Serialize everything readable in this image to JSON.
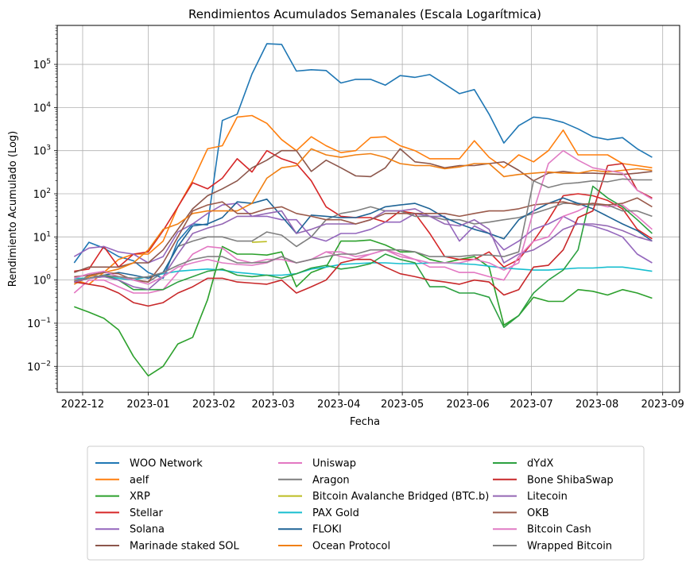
{
  "chart_data": {
    "type": "line",
    "title": "Rendimientos Acumulados Semanales (Escala Logarítmica)",
    "xlabel": "Fecha",
    "ylabel": "Rendimiento Acumulado (Log)",
    "yscale": "log",
    "ylim": [
      0.0025,
      800000
    ],
    "xlim": [
      "2022-11-19",
      "2023-09-09"
    ],
    "grid": true,
    "legend_position": "bottom",
    "x_tick_labels": [
      "2022-12",
      "2023-01",
      "2023-02",
      "2023-03",
      "2023-04",
      "2023-05",
      "2023-06",
      "2023-07",
      "2023-08",
      "2023-09"
    ],
    "x_tick_dates": [
      "2022-12-01",
      "2023-01-01",
      "2023-02-01",
      "2023-03-01",
      "2023-04-01",
      "2023-05-01",
      "2023-06-01",
      "2023-07-01",
      "2023-08-01",
      "2023-09-01"
    ],
    "y_tick_labels": [
      {
        "value": 0.01,
        "label": "10",
        "exp": "−2"
      },
      {
        "value": 0.1,
        "label": "10",
        "exp": "−1"
      },
      {
        "value": 1,
        "label": "10",
        "exp": "0"
      },
      {
        "value": 10,
        "label": "10",
        "exp": "1"
      },
      {
        "value": 100,
        "label": "10",
        "exp": "2"
      },
      {
        "value": 1000,
        "label": "10",
        "exp": "3"
      },
      {
        "value": 10000,
        "label": "10",
        "exp": "4"
      },
      {
        "value": 100000,
        "label": "10",
        "exp": "5"
      }
    ],
    "x": [
      "2022-11-27",
      "2022-12-04",
      "2022-12-11",
      "2022-12-18",
      "2022-12-25",
      "2023-01-01",
      "2023-01-08",
      "2023-01-15",
      "2023-01-22",
      "2023-01-29",
      "2023-02-05",
      "2023-02-12",
      "2023-02-19",
      "2023-02-26",
      "2023-03-05",
      "2023-03-12",
      "2023-03-19",
      "2023-03-26",
      "2023-04-02",
      "2023-04-09",
      "2023-04-16",
      "2023-04-23",
      "2023-04-30",
      "2023-05-07",
      "2023-05-14",
      "2023-05-21",
      "2023-05-28",
      "2023-06-04",
      "2023-06-11",
      "2023-06-18",
      "2023-06-25",
      "2023-07-02",
      "2023-07-09",
      "2023-07-16",
      "2023-07-23",
      "2023-07-30",
      "2023-08-06",
      "2023-08-13",
      "2023-08-20",
      "2023-08-27"
    ],
    "series": [
      {
        "name": "WOO Network",
        "color": "#1f77b4",
        "values": [
          2.5,
          7.5,
          5.5,
          3.5,
          2.8,
          1.5,
          1.1,
          8,
          20,
          19,
          5000,
          7000,
          60000,
          300000,
          290000,
          70000,
          75000,
          72000,
          37000,
          45000,
          45000,
          33000,
          55000,
          50000,
          58000,
          35000,
          21000,
          26000,
          7000,
          1500,
          3800,
          6000,
          5500,
          4500,
          3200,
          2100,
          1800,
          2000,
          1100,
          700
        ]
      },
      {
        "name": "aelf",
        "color": "#ff7f0e",
        "values": [
          1.0,
          0.8,
          1.5,
          3,
          4,
          4,
          8,
          50,
          200,
          1100,
          1300,
          6000,
          6500,
          4300,
          1800,
          1000,
          2100,
          1300,
          900,
          1000,
          2000,
          2100,
          1300,
          1000,
          650,
          650,
          650,
          1700,
          700,
          400,
          800,
          550,
          1000,
          3000,
          800,
          800,
          800,
          500,
          450,
          400
        ]
      },
      {
        "name": "XRP",
        "color": "#2ca02c",
        "values": [
          0.24,
          0.18,
          0.13,
          0.07,
          0.017,
          0.006,
          0.01,
          0.033,
          0.047,
          0.35,
          6,
          4,
          4,
          3.8,
          4.5,
          0.7,
          1.5,
          2,
          8,
          8,
          8.5,
          6.5,
          4.5,
          4.5,
          3,
          2.5,
          3,
          3.5,
          2,
          0.09,
          0.15,
          0.4,
          0.32,
          0.32,
          0.6,
          0.55,
          0.45,
          0.6,
          0.5,
          0.38
        ]
      },
      {
        "name": "Stellar",
        "color": "#d62728",
        "values": [
          1.6,
          1.8,
          6,
          2,
          4,
          4.5,
          14,
          50,
          180,
          130,
          230,
          650,
          320,
          1000,
          650,
          500,
          200,
          50,
          30,
          28,
          28,
          22,
          40,
          35,
          12,
          3.5,
          3,
          3,
          4.5,
          2,
          3,
          8,
          25,
          90,
          100,
          90,
          70,
          45,
          15,
          9
        ]
      },
      {
        "name": "Solana",
        "color": "#9467bd",
        "values": [
          3.5,
          5.5,
          6,
          4.5,
          4,
          2.5,
          3.5,
          13,
          20,
          35,
          55,
          60,
          30,
          30,
          25,
          25,
          10,
          8,
          12,
          12,
          15,
          22,
          22,
          35,
          30,
          30,
          8,
          18,
          12,
          5,
          8,
          15,
          20,
          30,
          20,
          18,
          14,
          10,
          4,
          2.5
        ]
      },
      {
        "name": "Marinade staked SOL",
        "color": "#8c564b",
        "values": [
          1.5,
          2,
          2,
          2,
          2.5,
          2.5,
          5,
          15,
          45,
          90,
          130,
          200,
          400,
          600,
          1000,
          1000,
          330,
          600,
          400,
          260,
          250,
          400,
          1100,
          550,
          500,
          400,
          450,
          450,
          500,
          550,
          350,
          200,
          300,
          330,
          300,
          300,
          290,
          280,
          300,
          330
        ]
      },
      {
        "name": "Uniswap",
        "color": "#e377c2",
        "values": [
          0.5,
          1,
          1,
          0.7,
          0.5,
          0.5,
          0.6,
          1.5,
          4,
          6,
          5.5,
          3,
          2.5,
          3,
          3,
          2.5,
          3,
          4.5,
          3.5,
          3,
          4,
          5,
          3.5,
          3,
          2,
          2,
          1.5,
          1.5,
          1.2,
          1,
          3.5,
          8,
          10,
          30,
          40,
          60,
          50,
          55,
          30,
          15
        ]
      },
      {
        "name": "Aragon",
        "color": "#7f7f7f",
        "values": [
          0.8,
          1.3,
          1.2,
          1.2,
          1.0,
          0.9,
          1.5,
          6,
          8,
          10,
          10,
          8,
          8,
          13,
          11,
          6,
          10,
          25,
          35,
          40,
          50,
          40,
          40,
          30,
          30,
          25,
          25,
          20,
          22,
          25,
          28,
          35,
          45,
          60,
          60,
          55,
          55,
          40,
          40,
          30
        ]
      },
      {
        "name": "Bitcoin Avalanche Bridged (BTC.b)",
        "color": "#bcbd22",
        "values": [
          null,
          null,
          null,
          null,
          null,
          null,
          null,
          null,
          null,
          null,
          null,
          null,
          7.5,
          7.8,
          null,
          null,
          null,
          null,
          null,
          null,
          null,
          null,
          null,
          null,
          null,
          null,
          null,
          null,
          null,
          null,
          null,
          null,
          null,
          null,
          null,
          null,
          null,
          null,
          null,
          null
        ]
      },
      {
        "name": "PAX Gold",
        "color": "#17becf",
        "values": [
          1.1,
          1.1,
          1.2,
          1.1,
          1.0,
          1.2,
          1.4,
          1.6,
          1.7,
          1.8,
          1.7,
          1.5,
          1.4,
          1.3,
          1.3,
          1.4,
          1.8,
          2.0,
          2.3,
          2.4,
          2.5,
          2.5,
          2.4,
          2.4,
          2.5,
          2.5,
          2.4,
          2.3,
          2.1,
          1.9,
          1.8,
          1.7,
          1.7,
          1.8,
          1.9,
          1.9,
          2.0,
          2.0,
          1.8,
          1.6
        ]
      },
      {
        "name": "FLOKI",
        "color": "#1f6496",
        "values": [
          1.0,
          1.1,
          1.3,
          1.5,
          1.3,
          1.1,
          1.5,
          6,
          18,
          20,
          28,
          65,
          60,
          75,
          30,
          12,
          32,
          30,
          28,
          28,
          35,
          50,
          55,
          60,
          45,
          28,
          20,
          15,
          12,
          9,
          25,
          40,
          60,
          80,
          60,
          45,
          30,
          20,
          14,
          8
        ]
      },
      {
        "name": "Ocean Protocol",
        "color": "#f07f12",
        "values": [
          0.8,
          1.2,
          1.5,
          1.8,
          2.5,
          5,
          15,
          20,
          35,
          40,
          40,
          40,
          60,
          230,
          400,
          450,
          1100,
          800,
          700,
          800,
          850,
          700,
          500,
          450,
          450,
          380,
          420,
          500,
          500,
          250,
          280,
          300,
          320,
          300,
          300,
          350,
          320,
          350,
          380,
          350
        ]
      },
      {
        "name": "dYdX",
        "color": "#2ca040",
        "values": [
          0.9,
          1.1,
          1.3,
          1.0,
          0.6,
          0.6,
          0.6,
          0.9,
          1.2,
          1.6,
          1.8,
          1.3,
          1.2,
          1.3,
          1.1,
          1.4,
          1.9,
          2.2,
          1.8,
          2.0,
          2.4,
          4,
          3,
          2.5,
          0.7,
          0.7,
          0.5,
          0.5,
          0.4,
          0.08,
          0.15,
          0.5,
          1,
          1.7,
          5,
          150,
          80,
          50,
          25,
          12
        ]
      },
      {
        "name": "Bone ShibaSwap",
        "color": "#c8282a",
        "values": [
          0.9,
          0.8,
          0.7,
          0.5,
          0.3,
          0.25,
          0.3,
          0.5,
          0.7,
          1.1,
          1.1,
          0.9,
          0.85,
          0.8,
          1.0,
          0.5,
          0.7,
          1.0,
          2.5,
          3,
          3,
          2,
          1.4,
          1.2,
          1,
          0.9,
          0.8,
          1.0,
          0.9,
          0.45,
          0.6,
          2,
          2.2,
          5,
          28,
          40,
          450,
          500,
          120,
          80
        ]
      },
      {
        "name": "Litecoin",
        "color": "#9467b4",
        "values": [
          0.9,
          1.1,
          1.2,
          1.0,
          0.7,
          0.6,
          1.2,
          4,
          12,
          16,
          20,
          30,
          30,
          35,
          40,
          12,
          15,
          20,
          20,
          20,
          25,
          40,
          40,
          45,
          30,
          20,
          18,
          25,
          15,
          2.5,
          4,
          5,
          8,
          15,
          20,
          20,
          18,
          14,
          10,
          8
        ]
      },
      {
        "name": "OKB",
        "color": "#9a5a4b",
        "values": [
          1.2,
          1.3,
          1.5,
          1.4,
          1.0,
          0.9,
          2.5,
          10,
          40,
          55,
          65,
          35,
          35,
          45,
          50,
          35,
          30,
          25,
          25,
          20,
          25,
          35,
          35,
          35,
          35,
          35,
          30,
          35,
          40,
          40,
          45,
          55,
          60,
          65,
          55,
          60,
          55,
          60,
          80,
          50
        ]
      },
      {
        "name": "Bitcoin Cash",
        "color": "#e07cc4",
        "values": [
          1.1,
          1.4,
          1.6,
          1.2,
          1.0,
          0.8,
          1.2,
          2,
          2.5,
          3,
          2.5,
          2.3,
          2.2,
          2.5,
          3.5,
          2.5,
          3,
          4.5,
          4.5,
          3.5,
          4,
          5,
          4,
          3,
          2.5,
          2.5,
          2.5,
          3,
          2.5,
          1.7,
          2.5,
          40,
          500,
          1000,
          600,
          400,
          350,
          300,
          120,
          75
        ]
      },
      {
        "name": "Wrapped Bitcoin",
        "color": "#808080",
        "values": [
          1.0,
          1.1,
          1.3,
          1.2,
          1.1,
          1.2,
          1.5,
          2.2,
          3,
          3.5,
          3.5,
          2.5,
          2.5,
          2.6,
          3.5,
          2.5,
          3,
          3.5,
          4,
          4,
          5,
          5,
          5,
          4.5,
          3.5,
          3.5,
          3.5,
          3.8,
          3.8,
          3.5,
          4.5,
          200,
          140,
          170,
          180,
          200,
          190,
          220,
          210,
          210
        ]
      }
    ]
  }
}
